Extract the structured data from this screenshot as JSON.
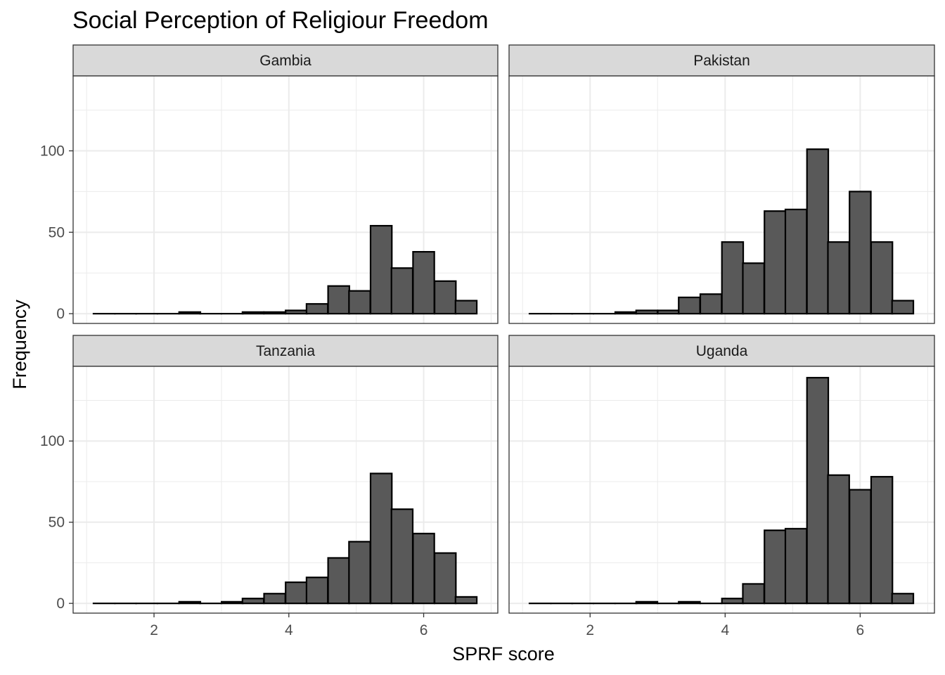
{
  "chart_data": {
    "type": "bar",
    "title": "Social Perception of Religiour Freedom",
    "xlabel": "SPRF score",
    "ylabel": "Frequency",
    "xlim": [
      0.8,
      7.1
    ],
    "ylim": [
      -6,
      146
    ],
    "x_ticks": [
      2,
      4,
      6
    ],
    "y_ticks": [
      0,
      50,
      100
    ],
    "bin_width": 0.3158,
    "bin_centers": [
      1.26,
      1.58,
      1.89,
      2.21,
      2.53,
      2.84,
      3.16,
      3.47,
      3.79,
      4.11,
      4.42,
      4.74,
      5.05,
      5.37,
      5.68,
      6.0,
      6.32,
      6.63
    ],
    "grid": true,
    "panels": [
      {
        "name": "Gambia",
        "values": [
          0,
          0,
          0,
          0,
          1,
          0,
          0,
          1,
          1,
          2,
          6,
          17,
          14,
          54,
          28,
          38,
          20,
          8
        ]
      },
      {
        "name": "Pakistan",
        "values": [
          0,
          0,
          0,
          0,
          1,
          2,
          2,
          10,
          12,
          44,
          31,
          63,
          64,
          101,
          44,
          75,
          44,
          8
        ]
      },
      {
        "name": "Tanzania",
        "values": [
          0,
          0,
          0,
          0,
          1,
          0,
          1,
          3,
          6,
          13,
          16,
          28,
          38,
          80,
          58,
          43,
          31,
          4
        ]
      },
      {
        "name": "Uganda",
        "values": [
          0,
          0,
          0,
          0,
          0,
          1,
          0,
          1,
          0,
          3,
          12,
          45,
          46,
          139,
          79,
          70,
          78,
          6
        ]
      }
    ]
  }
}
